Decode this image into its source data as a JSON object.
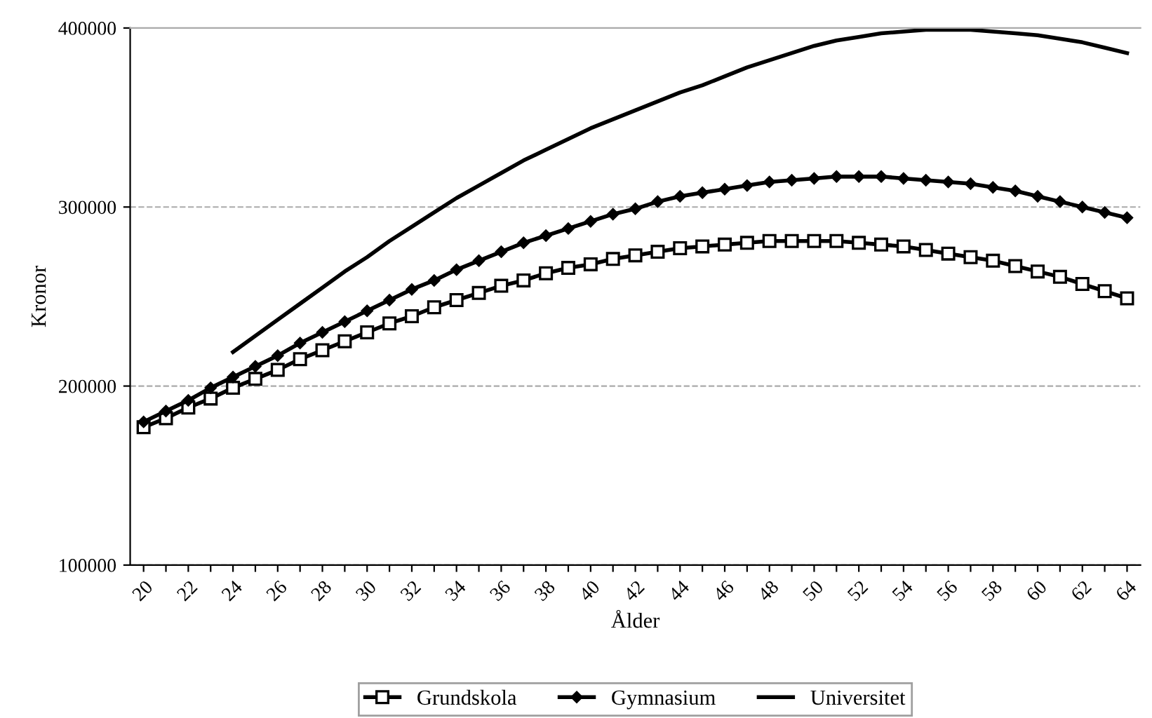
{
  "chart_data": {
    "type": "line",
    "xlabel": "Ålder",
    "ylabel": "Kronor",
    "categories": [
      "20",
      null,
      "22",
      null,
      "24",
      null,
      "26",
      null,
      "28",
      null,
      "30",
      null,
      "32",
      null,
      "34",
      null,
      "36",
      null,
      "38",
      null,
      "40",
      null,
      "42",
      null,
      "44",
      null,
      "46",
      null,
      "48",
      null,
      "50",
      null,
      "52",
      null,
      "54",
      null,
      "56",
      null,
      "58",
      null,
      "60",
      null,
      "62",
      null,
      "64"
    ],
    "ylim": [
      100000,
      400000
    ],
    "yticks": [
      100000,
      200000,
      300000,
      400000
    ],
    "grid": "y",
    "legend": "bottom",
    "series": [
      {
        "name": "Grundskola",
        "color": "#000000",
        "marker": "square",
        "values": [
          177000,
          182000,
          188000,
          193000,
          199000,
          204000,
          209000,
          215000,
          220000,
          225000,
          230000,
          235000,
          239000,
          244000,
          248000,
          252000,
          256000,
          259000,
          263000,
          266000,
          268000,
          271000,
          273000,
          275000,
          277000,
          278000,
          279000,
          280000,
          281000,
          281000,
          281000,
          281000,
          280000,
          279000,
          278000,
          276000,
          274000,
          272000,
          270000,
          267000,
          264000,
          261000,
          257000,
          253000,
          249000
        ]
      },
      {
        "name": "Gymnasium",
        "color": "#000000",
        "marker": "diamond",
        "values": [
          180000,
          186000,
          192000,
          199000,
          205000,
          211000,
          217000,
          224000,
          230000,
          236000,
          242000,
          248000,
          254000,
          259000,
          265000,
          270000,
          275000,
          280000,
          284000,
          288000,
          292000,
          296000,
          299000,
          303000,
          306000,
          308000,
          310000,
          312000,
          314000,
          315000,
          316000,
          317000,
          317000,
          317000,
          316000,
          315000,
          314000,
          313000,
          311000,
          309000,
          306000,
          303000,
          300000,
          297000,
          294000
        ]
      },
      {
        "name": "Universitet",
        "color": "#000000",
        "marker": "none",
        "values": [
          null,
          null,
          null,
          null,
          219000,
          228000,
          237000,
          246000,
          255000,
          264000,
          272000,
          281000,
          289000,
          297000,
          305000,
          312000,
          319000,
          326000,
          332000,
          338000,
          344000,
          349000,
          354000,
          359000,
          364000,
          368000,
          373000,
          378000,
          382000,
          386000,
          390000,
          393000,
          395000,
          397000,
          398000,
          399000,
          399000,
          399000,
          398000,
          397000,
          396000,
          394000,
          392000,
          389000,
          386000
        ]
      }
    ]
  }
}
